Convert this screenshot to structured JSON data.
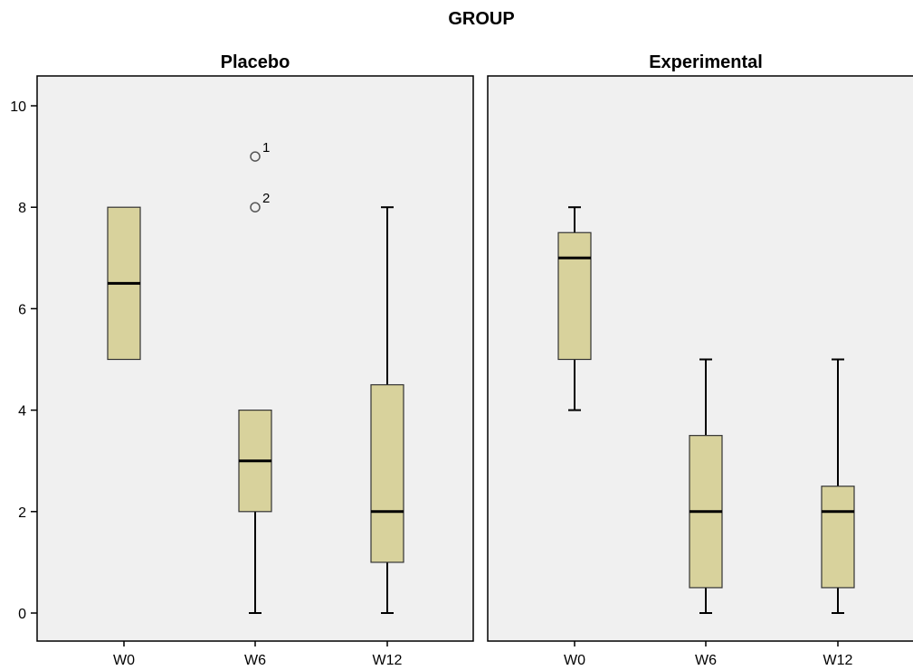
{
  "chart_data": {
    "type": "boxplot",
    "title": "GROUP",
    "xlabel": "",
    "ylabel": "",
    "ylim": [
      0,
      10
    ],
    "yticks": [
      0,
      2,
      4,
      6,
      8,
      10
    ],
    "grid": false,
    "categories": [
      "W0",
      "W6",
      "W12"
    ],
    "colors": {
      "box_fill": "#d8d29c",
      "panel_bg": "#f0f0f0",
      "stroke": "#000000",
      "outlier": "#555555"
    },
    "panels": [
      {
        "name": "Placebo",
        "boxes": [
          {
            "category": "W0",
            "min": 5,
            "q1": 5,
            "median": 6.5,
            "q3": 8,
            "max": 8,
            "outliers": []
          },
          {
            "category": "W6",
            "min": 0,
            "q1": 2,
            "median": 3,
            "q3": 4,
            "max": 4,
            "outliers": [
              {
                "value": 9,
                "label": "1"
              },
              {
                "value": 8,
                "label": "2"
              }
            ]
          },
          {
            "category": "W12",
            "min": 0,
            "q1": 1,
            "median": 2,
            "q3": 4.5,
            "max": 8,
            "outliers": []
          }
        ]
      },
      {
        "name": "Experimental",
        "boxes": [
          {
            "category": "W0",
            "min": 4,
            "q1": 5,
            "median": 7,
            "q3": 7.5,
            "max": 8,
            "outliers": []
          },
          {
            "category": "W6",
            "min": 0,
            "q1": 0.5,
            "median": 2,
            "q3": 3.5,
            "max": 5,
            "outliers": []
          },
          {
            "category": "W12",
            "min": 0,
            "q1": 0.5,
            "median": 2,
            "q3": 2.5,
            "max": 5,
            "outliers": []
          }
        ]
      }
    ]
  }
}
